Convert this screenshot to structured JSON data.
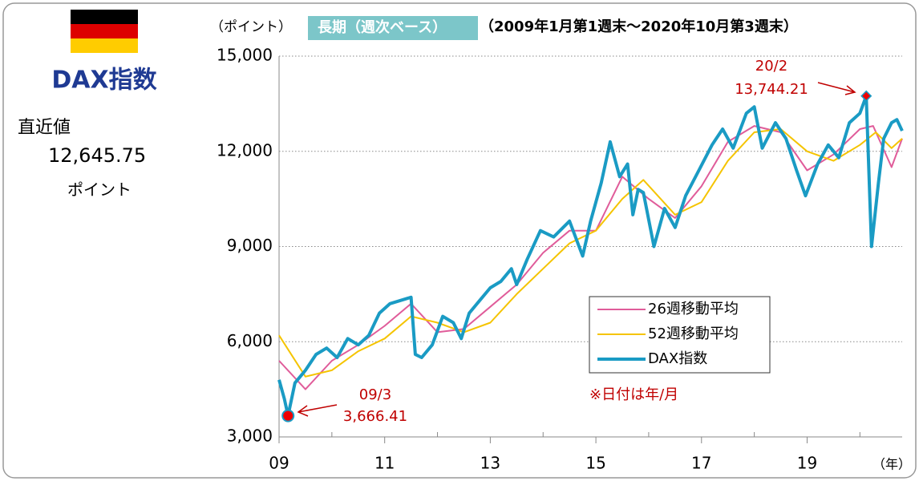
{
  "chart_data": {
    "type": "line",
    "side_title": "DAX指数",
    "latest_label": "直近値",
    "latest_value": "12,645.75",
    "latest_unit": "ポイント",
    "y_unit": "（ポイント）",
    "title": "長期（週次ベース）",
    "subtitle": "（2009年1月第1週末～2020年10月第3週末）",
    "x_unit": "（年）",
    "note": "※日付は年/月",
    "annotations": [
      {
        "date": "20/2",
        "value": "13,744.21"
      },
      {
        "date": "09/3",
        "value": "3,666.41"
      }
    ],
    "xlim": [
      2009,
      2020.8
    ],
    "xticks": [
      {
        "value": 2009,
        "label": "09"
      },
      {
        "value": 2011,
        "label": "11"
      },
      {
        "value": 2013,
        "label": "13"
      },
      {
        "value": 2015,
        "label": "15"
      },
      {
        "value": 2017,
        "label": "17"
      },
      {
        "value": 2019,
        "label": "19"
      }
    ],
    "xminor_ticks": [
      2010,
      2012,
      2014,
      2016,
      2018,
      2020
    ],
    "ylim": [
      3000,
      15000
    ],
    "yticks": [
      {
        "value": 3000,
        "label": "3,000"
      },
      {
        "value": 6000,
        "label": "6,000"
      },
      {
        "value": 9000,
        "label": "9,000"
      },
      {
        "value": 12000,
        "label": "12,000"
      },
      {
        "value": 15000,
        "label": "15,000"
      }
    ],
    "grid": true,
    "series": [
      {
        "name": "26週移動平均",
        "color": "#e05c9a",
        "x": [
          2009.0,
          2009.5,
          2010.0,
          2010.5,
          2011.0,
          2011.5,
          2012.0,
          2012.5,
          2013.0,
          2013.5,
          2014.0,
          2014.5,
          2015.0,
          2015.5,
          2016.0,
          2016.5,
          2017.0,
          2017.5,
          2018.0,
          2018.5,
          2019.0,
          2019.5,
          2020.0,
          2020.25,
          2020.6,
          2020.8
        ],
        "values": [
          5400,
          4500,
          5400,
          5900,
          6500,
          7200,
          6300,
          6400,
          7100,
          7800,
          8800,
          9500,
          9500,
          11200,
          10500,
          9900,
          10900,
          12300,
          12800,
          12600,
          11400,
          11900,
          12700,
          12800,
          11500,
          12400
        ]
      },
      {
        "name": "52週移動平均",
        "color": "#f5c400",
        "x": [
          2009.0,
          2009.5,
          2010.0,
          2010.5,
          2011.0,
          2011.5,
          2012.0,
          2012.5,
          2013.0,
          2013.5,
          2014.0,
          2014.5,
          2015.0,
          2015.5,
          2015.9,
          2016.5,
          2017.0,
          2017.5,
          2018.0,
          2018.5,
          2019.0,
          2019.5,
          2020.0,
          2020.3,
          2020.6,
          2020.8
        ],
        "values": [
          6200,
          4900,
          5100,
          5700,
          6100,
          6800,
          6600,
          6300,
          6600,
          7500,
          8300,
          9100,
          9500,
          10500,
          11100,
          10000,
          10400,
          11700,
          12600,
          12700,
          12000,
          11700,
          12200,
          12600,
          12100,
          12400
        ]
      },
      {
        "name": "DAX指数",
        "color": "#1a9bc4",
        "x": [
          2009.0,
          2009.1,
          2009.17,
          2009.3,
          2009.5,
          2009.7,
          2009.9,
          2010.1,
          2010.3,
          2010.5,
          2010.7,
          2010.9,
          2011.1,
          2011.3,
          2011.5,
          2011.58,
          2011.7,
          2011.9,
          2012.1,
          2012.3,
          2012.45,
          2012.6,
          2012.8,
          2013.0,
          2013.2,
          2013.4,
          2013.5,
          2013.7,
          2013.95,
          2014.2,
          2014.5,
          2014.75,
          2014.9,
          2015.1,
          2015.27,
          2015.45,
          2015.6,
          2015.7,
          2015.8,
          2015.9,
          2016.1,
          2016.3,
          2016.5,
          2016.7,
          2016.95,
          2017.2,
          2017.4,
          2017.6,
          2017.85,
          2018.0,
          2018.15,
          2018.4,
          2018.6,
          2018.8,
          2018.97,
          2019.2,
          2019.4,
          2019.6,
          2019.8,
          2020.0,
          2020.12,
          2020.22,
          2020.35,
          2020.45,
          2020.6,
          2020.7,
          2020.8
        ],
        "values": [
          4800,
          4200,
          3666.41,
          4700,
          5100,
          5600,
          5800,
          5500,
          6100,
          5900,
          6200,
          6900,
          7200,
          7300,
          7400,
          5600,
          5500,
          5900,
          6800,
          6600,
          6100,
          6900,
          7300,
          7700,
          7900,
          8300,
          7800,
          8600,
          9500,
          9300,
          9800,
          8700,
          9800,
          11000,
          12300,
          11200,
          11600,
          10000,
          10800,
          10700,
          9000,
          10200,
          9600,
          10600,
          11400,
          12200,
          12700,
          12100,
          13200,
          13400,
          12100,
          12900,
          12400,
          11400,
          10600,
          11600,
          12200,
          11800,
          12900,
          13200,
          13744.21,
          9000,
          11000,
          12400,
          12900,
          13000,
          12645.75
        ]
      }
    ]
  }
}
